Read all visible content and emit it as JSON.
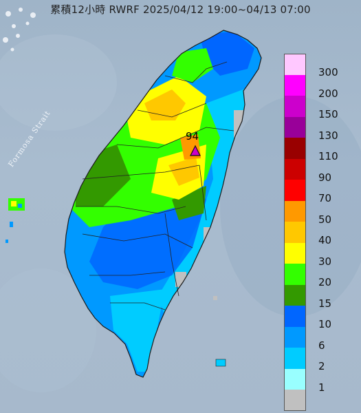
{
  "title": "累積12小時 RWRF 2025/04/12 19:00~04/13 07:00",
  "strait_label": "Formosa Strait",
  "station": {
    "value": "94"
  },
  "legend": {
    "items": [
      {
        "label": "300",
        "color": "#ffc8ff"
      },
      {
        "label": "200",
        "color": "#ff00ff"
      },
      {
        "label": "150",
        "color": "#cc00cc"
      },
      {
        "label": "130",
        "color": "#990099"
      },
      {
        "label": "110",
        "color": "#990000"
      },
      {
        "label": "90",
        "color": "#cc0000"
      },
      {
        "label": "70",
        "color": "#ff0000"
      },
      {
        "label": "50",
        "color": "#ff9900"
      },
      {
        "label": "40",
        "color": "#ffc800"
      },
      {
        "label": "30",
        "color": "#ffff00"
      },
      {
        "label": "20",
        "color": "#33ff00"
      },
      {
        "label": "15",
        "color": "#339900"
      },
      {
        "label": "10",
        "color": "#0066ff"
      },
      {
        "label": "6",
        "color": "#0099ff"
      },
      {
        "label": "2",
        "color": "#00ccff"
      },
      {
        "label": "1",
        "color": "#99ffff"
      },
      {
        "label": "",
        "color": "#c0c0c0"
      }
    ]
  },
  "colors": {
    "sea": "#a7b9cc",
    "station_marker": "#cc00cc"
  }
}
